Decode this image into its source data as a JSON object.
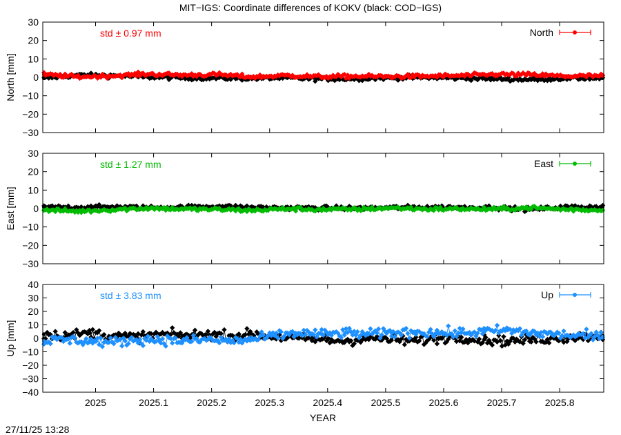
{
  "figure": {
    "title": "MIT−IGS: Coordinate differences of KOKV (black: COD−IGS)",
    "xlabel": "YEAR",
    "timestamp": "27/11/25 13:28"
  },
  "chart_data": [
    {
      "type": "scatter",
      "panel": "north",
      "ylabel": "North [mm]",
      "legend": "North",
      "legend_position": "top-right",
      "std_text": "std ± 0.97 mm",
      "accent": "#ff0000",
      "comparison_color": "#000000",
      "xlim": [
        2024.909,
        2025.876
      ],
      "ylim": [
        -30,
        30
      ],
      "yticks": [
        30,
        20,
        10,
        0,
        -10,
        -20,
        -30
      ],
      "ytick_labels": [
        "30",
        "20",
        "10",
        "0",
        "−10",
        "−20",
        "−30"
      ],
      "xticks": [
        2025,
        2025.1,
        2025.2,
        2025.3,
        2025.4,
        2025.5,
        2025.6,
        2025.7,
        2025.8
      ],
      "xtick_labels": [
        "",
        "",
        "",
        "",
        "",
        "",
        "",
        "",
        ""
      ],
      "series": [
        {
          "name": "North",
          "color": "#ff0000",
          "x": [
            2024.911,
            2024.97,
            2025.03,
            2025.09,
            2025.15,
            2025.21,
            2025.27,
            2025.33,
            2025.39,
            2025.45,
            2025.51,
            2025.57,
            2025.63,
            2025.69,
            2025.75,
            2025.81,
            2025.874
          ],
          "y": [
            1.5,
            0.3,
            0.8,
            1.8,
            1.2,
            1.5,
            0.2,
            1.0,
            0.3,
            0.6,
            0.4,
            0.6,
            0.9,
            1.6,
            1.4,
            0.6,
            0.8
          ]
        },
        {
          "color": "#000000",
          "x": [
            2024.911,
            2024.97,
            2025.03,
            2025.09,
            2025.15,
            2025.21,
            2025.27,
            2025.33,
            2025.39,
            2025.45,
            2025.51,
            2025.57,
            2025.63,
            2025.69,
            2025.75,
            2025.81,
            2025.874
          ],
          "y": [
            -0.5,
            1.2,
            0.9,
            0.2,
            -0.3,
            -0.4,
            -0.6,
            -0.3,
            -0.9,
            -0.7,
            -0.2,
            -0.1,
            -0.4,
            -0.8,
            -1.2,
            -0.5,
            -0.4
          ]
        }
      ]
    },
    {
      "type": "scatter",
      "panel": "east",
      "ylabel": "East [mm]",
      "legend": "East",
      "legend_position": "top-right",
      "std_text": "std ± 1.27 mm",
      "accent": "#00bb00",
      "comparison_color": "#000000",
      "xlim": [
        2024.909,
        2025.876
      ],
      "ylim": [
        -30,
        30
      ],
      "yticks": [
        30,
        20,
        10,
        0,
        -10,
        -20,
        -30
      ],
      "ytick_labels": [
        "30",
        "20",
        "10",
        "0",
        "−10",
        "−20",
        "−30"
      ],
      "xticks": [
        2025,
        2025.1,
        2025.2,
        2025.3,
        2025.4,
        2025.5,
        2025.6,
        2025.7,
        2025.8
      ],
      "xtick_labels": [
        "",
        "",
        "",
        "",
        "",
        "",
        "",
        "",
        ""
      ],
      "series": [
        {
          "name": "East",
          "color": "#00bb00",
          "x": [
            2024.911,
            2024.97,
            2025.03,
            2025.09,
            2025.15,
            2025.21,
            2025.27,
            2025.33,
            2025.39,
            2025.45,
            2025.51,
            2025.57,
            2025.63,
            2025.69,
            2025.75,
            2025.81,
            2025.874
          ],
          "y": [
            -0.8,
            -1.5,
            -0.6,
            0.2,
            -0.3,
            -0.5,
            -1.0,
            -0.2,
            -0.6,
            -0.4,
            0.3,
            -0.3,
            -0.2,
            -0.4,
            0.4,
            -0.5,
            -0.9
          ]
        },
        {
          "color": "#000000",
          "x": [
            2024.911,
            2024.97,
            2025.03,
            2025.09,
            2025.15,
            2025.21,
            2025.27,
            2025.33,
            2025.39,
            2025.45,
            2025.51,
            2025.57,
            2025.63,
            2025.69,
            2025.75,
            2025.81,
            2025.874
          ],
          "y": [
            0.8,
            0.6,
            0.9,
            0.5,
            0.7,
            1.2,
            0.6,
            0.4,
            0.3,
            0.2,
            0.5,
            0.7,
            0.6,
            0.5,
            -0.5,
            0.8,
            1.0
          ]
        }
      ]
    },
    {
      "type": "scatter",
      "panel": "up",
      "ylabel": "Up [mm]",
      "legend": "Up",
      "legend_position": "top-right",
      "std_text": "std ± 3.83 mm",
      "accent": "#1e90ff",
      "comparison_color": "#000000",
      "xlim": [
        2024.909,
        2025.876
      ],
      "ylim": [
        -40,
        40
      ],
      "yticks": [
        40,
        30,
        20,
        10,
        0,
        -10,
        -20,
        -30,
        -40
      ],
      "ytick_labels": [
        "40",
        "30",
        "20",
        "10",
        "0",
        "−10",
        "−20",
        "−30",
        "−40"
      ],
      "xticks": [
        2025,
        2025.1,
        2025.2,
        2025.3,
        2025.4,
        2025.5,
        2025.6,
        2025.7,
        2025.8
      ],
      "xtick_labels": [
        "2025",
        "2025.1",
        "2025.2",
        "2025.3",
        "2025.4",
        "2025.5",
        "2025.6",
        "2025.7",
        "2025.8"
      ],
      "series": [
        {
          "name": "Up",
          "color": "#1e90ff",
          "x": [
            2024.911,
            2024.95,
            2024.99,
            2025.03,
            2025.07,
            2025.11,
            2025.15,
            2025.19,
            2025.23,
            2025.27,
            2025.31,
            2025.35,
            2025.39,
            2025.43,
            2025.47,
            2025.51,
            2025.55,
            2025.59,
            2025.63,
            2025.67,
            2025.71,
            2025.75,
            2025.79,
            2025.83,
            2025.874
          ],
          "y": [
            -2,
            -1,
            -2,
            -3,
            -1,
            -1,
            -2,
            -1,
            -2,
            -1,
            2,
            4,
            3,
            4,
            3,
            4,
            5,
            4,
            4,
            5,
            6,
            4,
            3,
            2,
            1
          ]
        },
        {
          "color": "#000000",
          "x": [
            2024.911,
            2024.95,
            2024.99,
            2025.03,
            2025.07,
            2025.11,
            2025.15,
            2025.19,
            2025.23,
            2025.27,
            2025.31,
            2025.35,
            2025.39,
            2025.43,
            2025.47,
            2025.51,
            2025.55,
            2025.59,
            2025.63,
            2025.67,
            2025.71,
            2025.75,
            2025.79,
            2025.83,
            2025.874
          ],
          "y": [
            3,
            2,
            4,
            2,
            1,
            3,
            2,
            3,
            2,
            3,
            1,
            0,
            -1,
            -2,
            0,
            -1,
            -2,
            0,
            1,
            -1,
            -2,
            -1,
            0,
            1,
            2
          ]
        }
      ]
    }
  ]
}
